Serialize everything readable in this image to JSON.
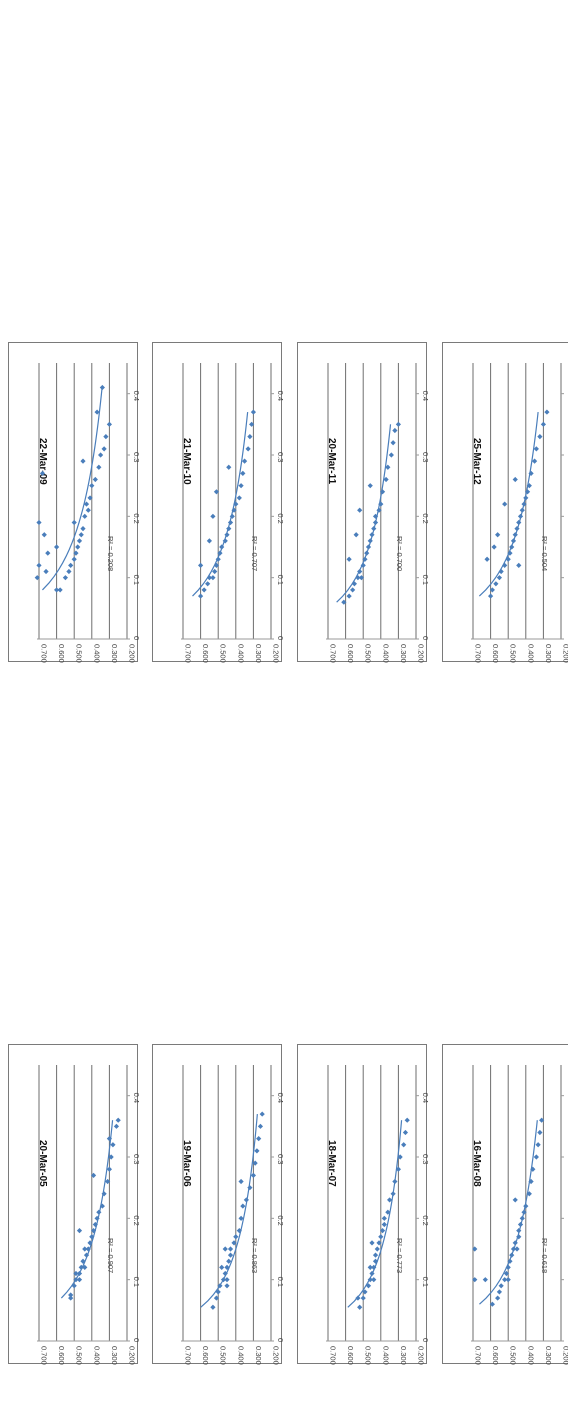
{
  "chart_data": [
    {
      "type": "scatter",
      "title": "20-Mar-05",
      "r2_label": "R² = 0.907",
      "points": [
        [
          0.07,
          0.52
        ],
        [
          0.075,
          0.52
        ],
        [
          0.09,
          0.5
        ],
        [
          0.1,
          0.49
        ],
        [
          0.1,
          0.47
        ],
        [
          0.11,
          0.47
        ],
        [
          0.12,
          0.46
        ],
        [
          0.12,
          0.44
        ],
        [
          0.13,
          0.45
        ],
        [
          0.14,
          0.43
        ],
        [
          0.15,
          0.42
        ],
        [
          0.15,
          0.44
        ],
        [
          0.16,
          0.41
        ],
        [
          0.17,
          0.4
        ],
        [
          0.18,
          0.39
        ],
        [
          0.19,
          0.38
        ],
        [
          0.2,
          0.37
        ],
        [
          0.21,
          0.36
        ],
        [
          0.22,
          0.34
        ],
        [
          0.24,
          0.33
        ],
        [
          0.26,
          0.31
        ],
        [
          0.28,
          0.3
        ],
        [
          0.3,
          0.29
        ],
        [
          0.32,
          0.28
        ],
        [
          0.33,
          0.3
        ],
        [
          0.35,
          0.26
        ],
        [
          0.36,
          0.25
        ],
        [
          0.18,
          0.47
        ],
        [
          0.11,
          0.49
        ],
        [
          0.27,
          0.39
        ]
      ]
    },
    {
      "type": "scatter",
      "title": "19-Mar-06",
      "r2_label": "R² = 0.863",
      "points": [
        [
          0.055,
          0.53
        ],
        [
          0.07,
          0.51
        ],
        [
          0.08,
          0.5
        ],
        [
          0.09,
          0.49
        ],
        [
          0.1,
          0.47
        ],
        [
          0.1,
          0.45
        ],
        [
          0.11,
          0.46
        ],
        [
          0.12,
          0.45
        ],
        [
          0.13,
          0.44
        ],
        [
          0.14,
          0.43
        ],
        [
          0.15,
          0.43
        ],
        [
          0.16,
          0.41
        ],
        [
          0.17,
          0.4
        ],
        [
          0.18,
          0.38
        ],
        [
          0.2,
          0.37
        ],
        [
          0.22,
          0.36
        ],
        [
          0.23,
          0.34
        ],
        [
          0.25,
          0.32
        ],
        [
          0.27,
          0.3
        ],
        [
          0.29,
          0.29
        ],
        [
          0.31,
          0.28
        ],
        [
          0.33,
          0.27
        ],
        [
          0.35,
          0.26
        ],
        [
          0.37,
          0.25
        ],
        [
          0.15,
          0.46
        ],
        [
          0.12,
          0.48
        ],
        [
          0.09,
          0.45
        ],
        [
          0.26,
          0.37
        ]
      ]
    },
    {
      "type": "scatter",
      "title": "18-Mar-07",
      "r2_label": "R² = 0.773",
      "points": [
        [
          0.055,
          0.52
        ],
        [
          0.07,
          0.5
        ],
        [
          0.08,
          0.49
        ],
        [
          0.09,
          0.47
        ],
        [
          0.1,
          0.46
        ],
        [
          0.1,
          0.44
        ],
        [
          0.11,
          0.45
        ],
        [
          0.12,
          0.44
        ],
        [
          0.13,
          0.43
        ],
        [
          0.14,
          0.43
        ],
        [
          0.15,
          0.42
        ],
        [
          0.16,
          0.41
        ],
        [
          0.17,
          0.4
        ],
        [
          0.18,
          0.39
        ],
        [
          0.19,
          0.38
        ],
        [
          0.2,
          0.38
        ],
        [
          0.21,
          0.36
        ],
        [
          0.23,
          0.35
        ],
        [
          0.24,
          0.33
        ],
        [
          0.26,
          0.32
        ],
        [
          0.28,
          0.3
        ],
        [
          0.3,
          0.29
        ],
        [
          0.32,
          0.27
        ],
        [
          0.34,
          0.26
        ],
        [
          0.36,
          0.25
        ],
        [
          0.07,
          0.53
        ],
        [
          0.12,
          0.46
        ],
        [
          0.16,
          0.45
        ]
      ]
    },
    {
      "type": "scatter",
      "title": "16-Mar-08",
      "r2_label": "R² = 0.618",
      "points": [
        [
          0.06,
          0.59
        ],
        [
          0.07,
          0.56
        ],
        [
          0.08,
          0.55
        ],
        [
          0.09,
          0.54
        ],
        [
          0.1,
          0.52
        ],
        [
          0.1,
          0.5
        ],
        [
          0.11,
          0.51
        ],
        [
          0.12,
          0.5
        ],
        [
          0.13,
          0.49
        ],
        [
          0.14,
          0.48
        ],
        [
          0.15,
          0.47
        ],
        [
          0.15,
          0.45
        ],
        [
          0.16,
          0.46
        ],
        [
          0.17,
          0.44
        ],
        [
          0.18,
          0.44
        ],
        [
          0.19,
          0.43
        ],
        [
          0.2,
          0.42
        ],
        [
          0.21,
          0.41
        ],
        [
          0.22,
          0.4
        ],
        [
          0.24,
          0.38
        ],
        [
          0.26,
          0.37
        ],
        [
          0.28,
          0.36
        ],
        [
          0.3,
          0.34
        ],
        [
          0.32,
          0.33
        ],
        [
          0.34,
          0.32
        ],
        [
          0.36,
          0.31
        ],
        [
          0.15,
          0.69
        ],
        [
          0.1,
          0.69
        ],
        [
          0.1,
          0.63
        ],
        [
          0.23,
          0.46
        ]
      ]
    },
    {
      "type": "scatter",
      "title": "22-Mar-09",
      "r2_label": "R² = 0.208",
      "points": [
        [
          0.1,
          0.71
        ],
        [
          0.12,
          0.7
        ],
        [
          0.11,
          0.66
        ],
        [
          0.14,
          0.65
        ],
        [
          0.15,
          0.6
        ],
        [
          0.17,
          0.67
        ],
        [
          0.19,
          0.7
        ],
        [
          0.08,
          0.6
        ],
        [
          0.08,
          0.58
        ],
        [
          0.1,
          0.55
        ],
        [
          0.11,
          0.53
        ],
        [
          0.12,
          0.52
        ],
        [
          0.13,
          0.5
        ],
        [
          0.14,
          0.49
        ],
        [
          0.15,
          0.48
        ],
        [
          0.16,
          0.47
        ],
        [
          0.17,
          0.46
        ],
        [
          0.18,
          0.45
        ],
        [
          0.19,
          0.5
        ],
        [
          0.2,
          0.44
        ],
        [
          0.21,
          0.42
        ],
        [
          0.22,
          0.43
        ],
        [
          0.23,
          0.41
        ],
        [
          0.25,
          0.4
        ],
        [
          0.26,
          0.38
        ],
        [
          0.28,
          0.36
        ],
        [
          0.3,
          0.35
        ],
        [
          0.31,
          0.33
        ],
        [
          0.33,
          0.32
        ],
        [
          0.35,
          0.3
        ],
        [
          0.37,
          0.37
        ],
        [
          0.41,
          0.34
        ],
        [
          0.29,
          0.45
        ],
        [
          0.27,
          0.68
        ]
      ]
    },
    {
      "type": "scatter",
      "title": "21-Mar-10",
      "r2_label": "R² = 0.707",
      "points": [
        [
          0.07,
          0.6
        ],
        [
          0.08,
          0.58
        ],
        [
          0.09,
          0.56
        ],
        [
          0.1,
          0.55
        ],
        [
          0.1,
          0.53
        ],
        [
          0.11,
          0.52
        ],
        [
          0.12,
          0.51
        ],
        [
          0.13,
          0.5
        ],
        [
          0.14,
          0.49
        ],
        [
          0.15,
          0.48
        ],
        [
          0.16,
          0.46
        ],
        [
          0.17,
          0.45
        ],
        [
          0.18,
          0.44
        ],
        [
          0.19,
          0.43
        ],
        [
          0.2,
          0.42
        ],
        [
          0.21,
          0.41
        ],
        [
          0.22,
          0.4
        ],
        [
          0.23,
          0.38
        ],
        [
          0.25,
          0.37
        ],
        [
          0.27,
          0.36
        ],
        [
          0.29,
          0.35
        ],
        [
          0.31,
          0.33
        ],
        [
          0.33,
          0.32
        ],
        [
          0.35,
          0.31
        ],
        [
          0.37,
          0.3
        ],
        [
          0.12,
          0.6
        ],
        [
          0.16,
          0.55
        ],
        [
          0.2,
          0.53
        ],
        [
          0.24,
          0.51
        ],
        [
          0.28,
          0.44
        ]
      ]
    },
    {
      "type": "scatter",
      "title": "20-Mar-11",
      "r2_label": "R² = 0.700",
      "points": [
        [
          0.06,
          0.61
        ],
        [
          0.07,
          0.58
        ],
        [
          0.08,
          0.56
        ],
        [
          0.09,
          0.55
        ],
        [
          0.1,
          0.53
        ],
        [
          0.1,
          0.51
        ],
        [
          0.11,
          0.52
        ],
        [
          0.12,
          0.5
        ],
        [
          0.13,
          0.49
        ],
        [
          0.14,
          0.48
        ],
        [
          0.15,
          0.47
        ],
        [
          0.16,
          0.46
        ],
        [
          0.17,
          0.45
        ],
        [
          0.18,
          0.44
        ],
        [
          0.19,
          0.43
        ],
        [
          0.2,
          0.43
        ],
        [
          0.21,
          0.41
        ],
        [
          0.22,
          0.4
        ],
        [
          0.24,
          0.39
        ],
        [
          0.26,
          0.37
        ],
        [
          0.28,
          0.36
        ],
        [
          0.3,
          0.34
        ],
        [
          0.32,
          0.33
        ],
        [
          0.34,
          0.32
        ],
        [
          0.35,
          0.3
        ],
        [
          0.13,
          0.58
        ],
        [
          0.17,
          0.54
        ],
        [
          0.21,
          0.52
        ],
        [
          0.25,
          0.46
        ]
      ]
    },
    {
      "type": "scatter",
      "title": "25-Mar-12",
      "r2_label": "R² = 0.504",
      "points": [
        [
          0.07,
          0.6
        ],
        [
          0.08,
          0.59
        ],
        [
          0.09,
          0.57
        ],
        [
          0.1,
          0.55
        ],
        [
          0.11,
          0.54
        ],
        [
          0.12,
          0.52
        ],
        [
          0.13,
          0.5
        ],
        [
          0.14,
          0.49
        ],
        [
          0.15,
          0.48
        ],
        [
          0.16,
          0.47
        ],
        [
          0.17,
          0.46
        ],
        [
          0.18,
          0.45
        ],
        [
          0.19,
          0.44
        ],
        [
          0.2,
          0.43
        ],
        [
          0.21,
          0.42
        ],
        [
          0.22,
          0.41
        ],
        [
          0.23,
          0.4
        ],
        [
          0.25,
          0.38
        ],
        [
          0.27,
          0.37
        ],
        [
          0.29,
          0.35
        ],
        [
          0.31,
          0.34
        ],
        [
          0.33,
          0.32
        ],
        [
          0.35,
          0.3
        ],
        [
          0.37,
          0.28
        ],
        [
          0.13,
          0.62
        ],
        [
          0.15,
          0.58
        ],
        [
          0.17,
          0.56
        ],
        [
          0.22,
          0.52
        ],
        [
          0.26,
          0.46
        ],
        [
          0.12,
          0.44
        ],
        [
          0.24,
          0.39
        ]
      ]
    }
  ],
  "axes": {
    "y_ticks": [
      "0.700",
      "0.600",
      "0.500",
      "0.400",
      "0.300",
      "0.200"
    ],
    "x_ticks": [
      "0",
      "0.1",
      "0.2",
      "0.3",
      "0.4"
    ],
    "y_range": [
      0.2,
      0.7
    ],
    "x_range": [
      0,
      0.45
    ],
    "grid": true,
    "orientation": "rotated 90° clockwise"
  },
  "colors": {
    "marker": "#4a7ebb",
    "trend": "#4a7ebb",
    "grid": "#6e6e6e"
  }
}
